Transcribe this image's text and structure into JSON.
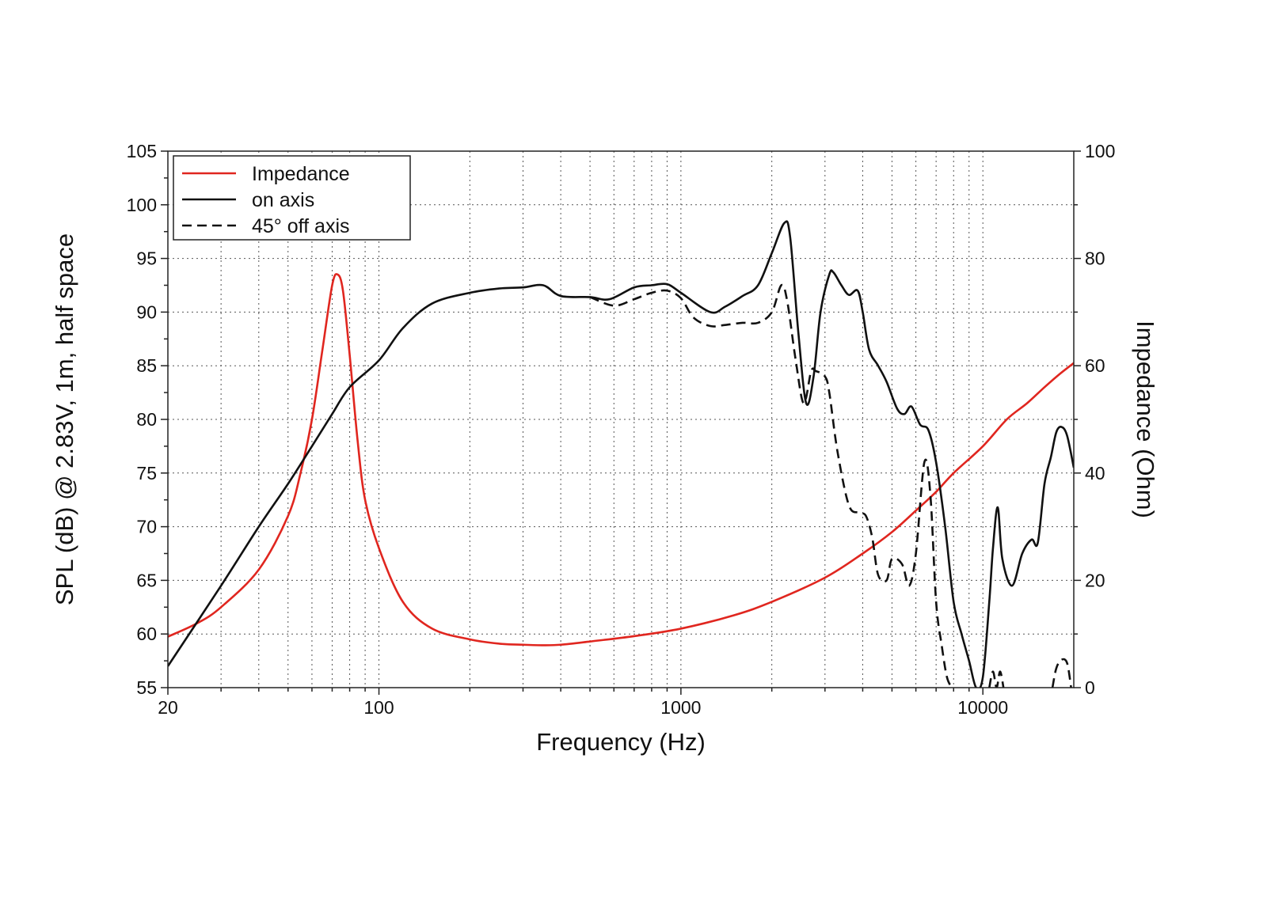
{
  "chart_data": {
    "type": "line",
    "xlabel": "Frequency (Hz)",
    "ylabel": "SPL (dB) @ 2.83V, 1m, half space",
    "ylabel_right": "Impedance (Ohm)",
    "x_scale": "log",
    "xlim": [
      20,
      20000
    ],
    "ylim": [
      55,
      105
    ],
    "ylim_right": [
      0,
      100
    ],
    "x_ticks": [
      20,
      100,
      1000,
      10000
    ],
    "x_tick_labels": [
      "20",
      "100",
      "1000",
      "10000"
    ],
    "y_ticks": [
      55,
      60,
      65,
      70,
      75,
      80,
      85,
      90,
      95,
      100,
      105
    ],
    "y_tick_labels": [
      "55",
      "60",
      "65",
      "70",
      "75",
      "80",
      "85",
      "90",
      "95",
      "100",
      "105"
    ],
    "y_right_ticks": [
      0,
      20,
      40,
      60,
      80,
      100
    ],
    "y_right_tick_labels": [
      "0",
      "20",
      "40",
      "60",
      "80",
      "100"
    ],
    "grid": true,
    "legend_position": "top-left",
    "series": [
      {
        "name": "Impedance",
        "axis": "right",
        "color": "#e0261f",
        "dash": "solid",
        "points": [
          [
            20,
            9.5
          ],
          [
            25,
            12
          ],
          [
            30,
            15
          ],
          [
            40,
            22
          ],
          [
            50,
            32
          ],
          [
            55,
            40
          ],
          [
            60,
            50
          ],
          [
            65,
            63
          ],
          [
            70,
            75
          ],
          [
            73,
            77
          ],
          [
            76,
            74
          ],
          [
            80,
            62
          ],
          [
            85,
            46
          ],
          [
            90,
            35
          ],
          [
            100,
            26
          ],
          [
            120,
            16
          ],
          [
            150,
            11
          ],
          [
            200,
            9
          ],
          [
            250,
            8.2
          ],
          [
            300,
            8
          ],
          [
            350,
            7.9
          ],
          [
            400,
            8
          ],
          [
            500,
            8.6
          ],
          [
            700,
            9.6
          ],
          [
            1000,
            11
          ],
          [
            1500,
            13.5
          ],
          [
            2000,
            16
          ],
          [
            3000,
            20.5
          ],
          [
            4000,
            25
          ],
          [
            5000,
            29
          ],
          [
            6000,
            33
          ],
          [
            7000,
            36.5
          ],
          [
            8000,
            40
          ],
          [
            10000,
            45
          ],
          [
            12000,
            50
          ],
          [
            14000,
            53
          ],
          [
            16000,
            56
          ],
          [
            18000,
            58.5
          ],
          [
            20000,
            60.5
          ]
        ]
      },
      {
        "name": "on axis",
        "axis": "left",
        "color": "#111111",
        "dash": "solid",
        "points": [
          [
            20,
            57
          ],
          [
            30,
            64.5
          ],
          [
            40,
            70
          ],
          [
            50,
            74
          ],
          [
            60,
            77.5
          ],
          [
            70,
            80.5
          ],
          [
            80,
            83
          ],
          [
            100,
            85.5
          ],
          [
            120,
            88.5
          ],
          [
            150,
            90.8
          ],
          [
            200,
            91.8
          ],
          [
            250,
            92.2
          ],
          [
            300,
            92.3
          ],
          [
            350,
            92.5
          ],
          [
            400,
            91.5
          ],
          [
            500,
            91.4
          ],
          [
            580,
            91.2
          ],
          [
            700,
            92.3
          ],
          [
            800,
            92.5
          ],
          [
            900,
            92.6
          ],
          [
            1000,
            91.8
          ],
          [
            1250,
            90
          ],
          [
            1400,
            90.5
          ],
          [
            1600,
            91.5
          ],
          [
            1800,
            92.5
          ],
          [
            2000,
            95.5
          ],
          [
            2200,
            98.3
          ],
          [
            2300,
            97
          ],
          [
            2450,
            88
          ],
          [
            2600,
            81.5
          ],
          [
            2750,
            84
          ],
          [
            2900,
            90
          ],
          [
            3100,
            93.5
          ],
          [
            3200,
            93.7
          ],
          [
            3400,
            92.5
          ],
          [
            3600,
            91.6
          ],
          [
            3850,
            92
          ],
          [
            4000,
            90
          ],
          [
            4200,
            86.5
          ],
          [
            4500,
            85
          ],
          [
            4800,
            83.5
          ],
          [
            5200,
            81
          ],
          [
            5500,
            80.5
          ],
          [
            5800,
            81.2
          ],
          [
            6200,
            79.5
          ],
          [
            6600,
            79
          ],
          [
            7000,
            76
          ],
          [
            7500,
            70
          ],
          [
            8000,
            63
          ],
          [
            8500,
            60
          ],
          [
            9000,
            57.5
          ],
          [
            9500,
            55
          ],
          [
            10000,
            56
          ],
          [
            10500,
            63
          ],
          [
            10800,
            68
          ],
          [
            11200,
            71.8
          ],
          [
            11600,
            67
          ],
          [
            12500,
            64.5
          ],
          [
            13500,
            67.5
          ],
          [
            14500,
            68.8
          ],
          [
            15200,
            68.5
          ],
          [
            16000,
            74
          ],
          [
            16800,
            76.5
          ],
          [
            17500,
            78.8
          ],
          [
            18200,
            79.3
          ],
          [
            19000,
            78.5
          ],
          [
            20000,
            75.5
          ]
        ]
      },
      {
        "name": "45° off axis",
        "axis": "left",
        "color": "#111111",
        "dash": "dashed",
        "points": [
          [
            500,
            91.4
          ],
          [
            600,
            90.6
          ],
          [
            700,
            91.2
          ],
          [
            800,
            91.8
          ],
          [
            900,
            92
          ],
          [
            1000,
            91.3
          ],
          [
            1100,
            89.5
          ],
          [
            1250,
            88.7
          ],
          [
            1400,
            88.8
          ],
          [
            1600,
            89
          ],
          [
            1800,
            89
          ],
          [
            2000,
            90
          ],
          [
            2150,
            92.5
          ],
          [
            2250,
            91
          ],
          [
            2400,
            85.5
          ],
          [
            2550,
            81.5
          ],
          [
            2700,
            84.5
          ],
          [
            2800,
            84.5
          ],
          [
            3000,
            84
          ],
          [
            3100,
            82.5
          ],
          [
            3300,
            77
          ],
          [
            3600,
            72
          ],
          [
            3900,
            71.3
          ],
          [
            4100,
            71
          ],
          [
            4300,
            69
          ],
          [
            4500,
            65.5
          ],
          [
            4800,
            65
          ],
          [
            5000,
            67
          ],
          [
            5400,
            66.5
          ],
          [
            5700,
            64.5
          ],
          [
            6000,
            67.5
          ],
          [
            6400,
            76
          ],
          [
            6700,
            73
          ],
          [
            7000,
            63
          ],
          [
            7300,
            59
          ],
          [
            7600,
            56
          ],
          [
            7900,
            55
          ]
        ]
      },
      {
        "name": "45° off axis",
        "axis": "left",
        "color": "#111111",
        "dash": "dashed",
        "points": [
          [
            10500,
            55
          ],
          [
            10800,
            56.5
          ],
          [
            11100,
            55
          ],
          [
            11400,
            56.5
          ],
          [
            11700,
            55
          ]
        ]
      },
      {
        "name": "45° off axis",
        "axis": "left",
        "color": "#111111",
        "dash": "dashed",
        "points": [
          [
            17000,
            55
          ],
          [
            17500,
            56.8
          ],
          [
            18200,
            57.6
          ],
          [
            19000,
            57.3
          ],
          [
            19600,
            55
          ]
        ]
      }
    ],
    "legend": [
      {
        "label": "Impedance",
        "color": "#e0261f",
        "dash": "solid"
      },
      {
        "label": "on axis",
        "color": "#111111",
        "dash": "solid"
      },
      {
        "label": "45° off axis",
        "color": "#111111",
        "dash": "dashed"
      }
    ]
  }
}
